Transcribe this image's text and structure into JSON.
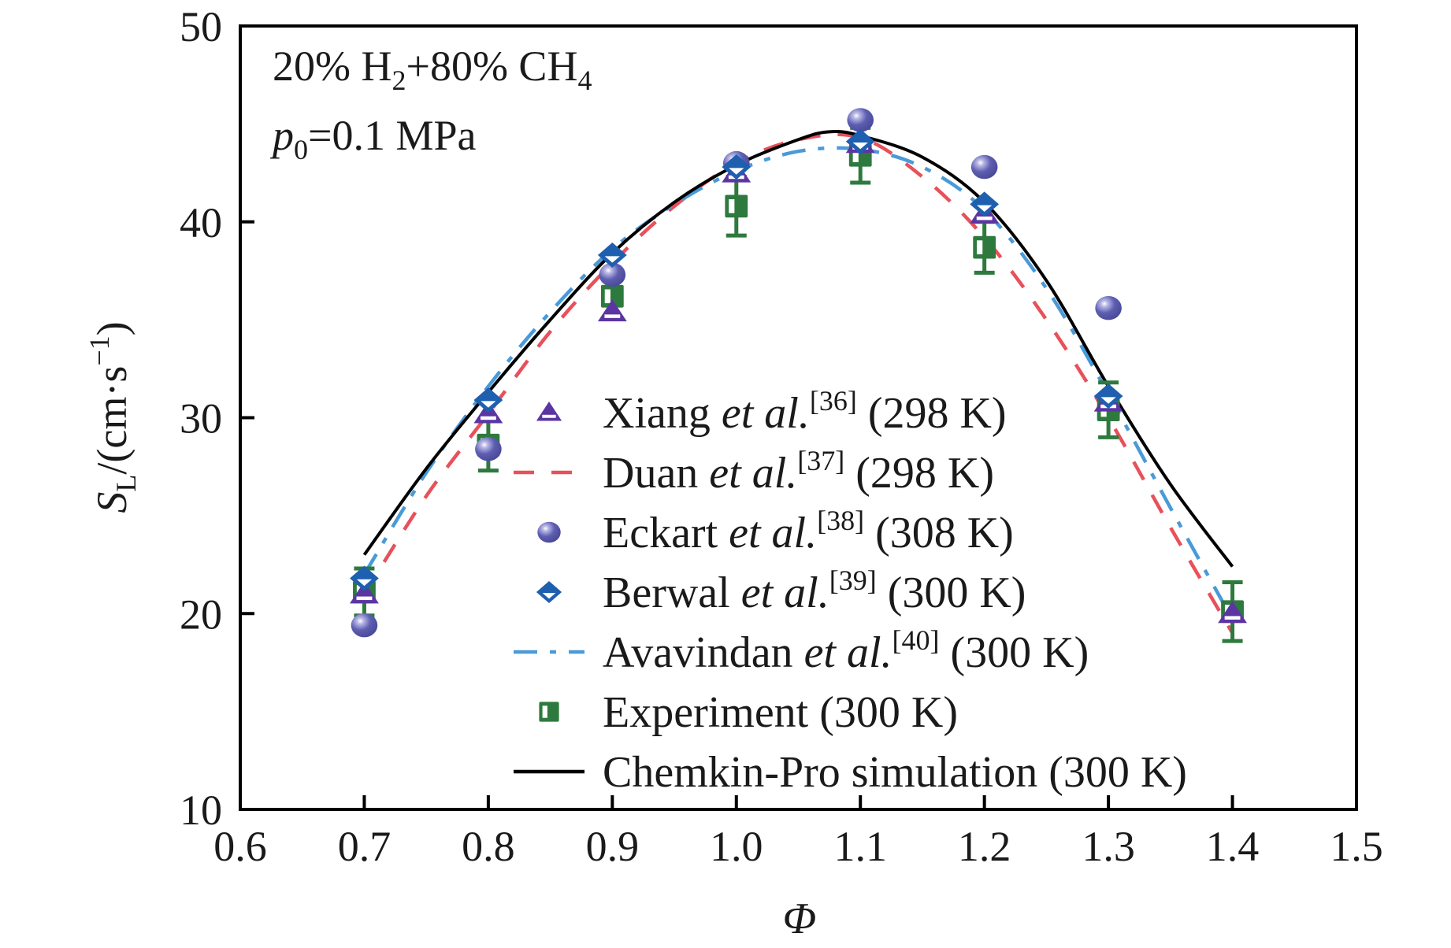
{
  "chart_data": {
    "type": "scatter",
    "title": "",
    "annotations": [
      {
        "line": 1,
        "parts": [
          [
            "20% H",
            "normal"
          ],
          [
            "2",
            "sub"
          ],
          [
            "+80% CH",
            "normal"
          ],
          [
            "4",
            "sub"
          ]
        ]
      },
      {
        "line": 2,
        "parts": [
          [
            "p",
            "italic"
          ],
          [
            "0",
            "sub"
          ],
          [
            "=0.1 MPa",
            "normal"
          ]
        ]
      }
    ],
    "xlabel": "Φ",
    "ylabel": {
      "main": "S",
      "sub": "L",
      "rest": "/(cm·s",
      "sup": "−1",
      "close": ")"
    },
    "xlim": [
      0.6,
      1.5
    ],
    "ylim": [
      10,
      50
    ],
    "xticks": [
      "0.6",
      "0.7",
      "0.8",
      "0.9",
      "1.0",
      "1.1",
      "1.2",
      "1.3",
      "1.4",
      "1.5"
    ],
    "yticks": [
      "10",
      "20",
      "30",
      "40",
      "50"
    ],
    "grid": false,
    "legend_position": "center-right",
    "series": [
      {
        "name": "Xiang",
        "italic": "et al.",
        "ref": "[36]",
        "temp": "(298 K)",
        "kind": "marker",
        "marker": "triangle",
        "color": "#5b35a2",
        "x": [
          0.7,
          0.8,
          0.9,
          1.0,
          1.1,
          1.2,
          1.3,
          1.4
        ],
        "y": [
          21.0,
          30.2,
          35.4,
          42.5,
          44.0,
          40.4,
          30.8,
          20.0
        ]
      },
      {
        "name": "Duan",
        "italic": "et al.",
        "ref": "[37]",
        "temp": "(298 K)",
        "kind": "line",
        "dash": "dashed",
        "color": "#e8505a",
        "x": [
          0.7,
          0.75,
          0.8,
          0.85,
          0.9,
          0.95,
          1.0,
          1.05,
          1.1,
          1.15,
          1.2,
          1.25,
          1.3,
          1.35,
          1.4
        ],
        "y": [
          21.0,
          26.0,
          30.2,
          34.4,
          37.9,
          40.8,
          43.0,
          44.2,
          44.3,
          42.3,
          39.2,
          35.0,
          30.0,
          24.4,
          19.0
        ]
      },
      {
        "name": "Eckart",
        "italic": "et al.",
        "ref": "[38]",
        "temp": "(308 K)",
        "kind": "marker",
        "marker": "sphere",
        "color": "#5a5aae",
        "x": [
          0.7,
          0.8,
          0.9,
          1.0,
          1.1,
          1.2,
          1.3
        ],
        "y": [
          19.4,
          28.4,
          37.3,
          43.0,
          45.2,
          42.8,
          35.6
        ]
      },
      {
        "name": "Berwal",
        "italic": "et al.",
        "ref": "[39]",
        "temp": "(300 K)",
        "kind": "marker",
        "marker": "diamond",
        "color": "#1f5fb0",
        "x": [
          0.7,
          0.8,
          0.9,
          1.0,
          1.1,
          1.2,
          1.3
        ],
        "y": [
          21.8,
          30.9,
          38.3,
          42.8,
          44.1,
          40.9,
          31.1
        ]
      },
      {
        "name": "Avavindan",
        "italic": "et al.",
        "ref": "[40]",
        "temp": "(300 K)",
        "kind": "line",
        "dash": "dashdot",
        "color": "#4a9ad8",
        "x": [
          0.7,
          0.75,
          0.8,
          0.85,
          0.9,
          0.95,
          1.0,
          1.05,
          1.1,
          1.15,
          1.2,
          1.25,
          1.3,
          1.35,
          1.4
        ],
        "y": [
          22.0,
          27.2,
          31.6,
          35.4,
          38.6,
          40.9,
          42.6,
          43.6,
          43.7,
          42.8,
          40.6,
          36.6,
          31.2,
          25.4,
          19.7
        ]
      },
      {
        "name": "Experiment",
        "italic": "",
        "ref": "",
        "temp": "(300 K)",
        "kind": "marker",
        "marker": "half-square",
        "color": "#2e7a3e",
        "x": [
          0.7,
          0.8,
          0.9,
          1.0,
          1.1,
          1.2,
          1.3,
          1.4
        ],
        "y": [
          21.1,
          28.6,
          36.2,
          40.8,
          43.4,
          38.7,
          30.4,
          20.1
        ],
        "error": [
          1.2,
          1.3,
          0.0,
          1.5,
          1.4,
          1.3,
          1.4,
          1.5
        ]
      },
      {
        "name": "Chemkin-Pro simulation",
        "italic": "",
        "ref": "",
        "temp": "(300 K)",
        "kind": "line",
        "dash": "solid",
        "color": "#000000",
        "x": [
          0.7,
          0.75,
          0.8,
          0.85,
          0.9,
          0.95,
          1.0,
          1.05,
          1.075,
          1.1,
          1.15,
          1.2,
          1.25,
          1.3,
          1.35,
          1.4
        ],
        "y": [
          23.0,
          27.4,
          31.3,
          35.0,
          38.4,
          41.0,
          42.9,
          44.2,
          44.6,
          44.4,
          43.3,
          41.0,
          37.0,
          31.6,
          26.6,
          22.4
        ]
      }
    ]
  }
}
